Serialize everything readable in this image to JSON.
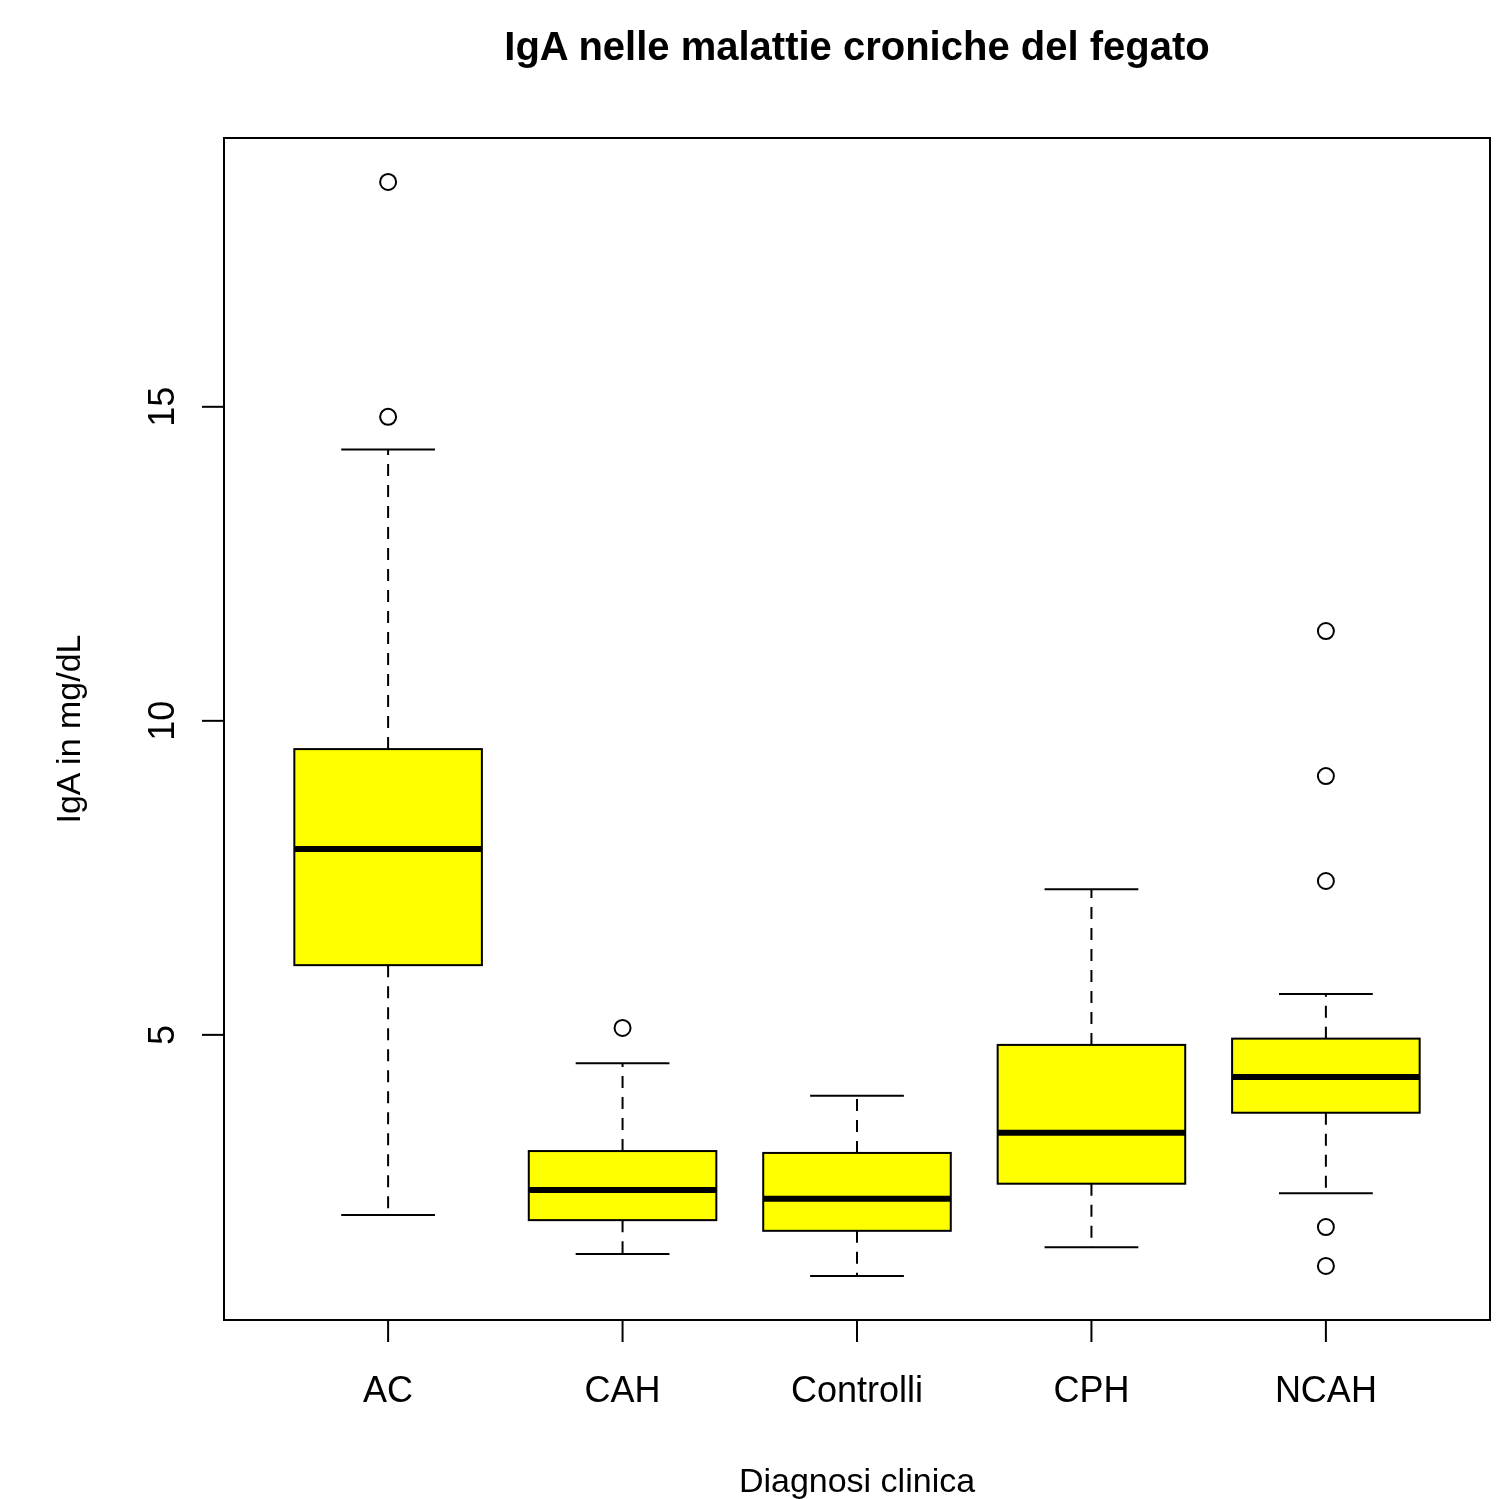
{
  "chart_data": {
    "type": "box",
    "title": "IgA nelle malattie croniche del fegato",
    "xlabel": "Diagnosi clinica",
    "ylabel": "IgA in mg/dL",
    "categories": [
      "AC",
      "CAH",
      "Controlli",
      "CPH",
      "NCAH"
    ],
    "color": "#ffff00",
    "boxes": [
      {
        "low": 2.13,
        "q1": 6.11,
        "median": 7.96,
        "q3": 9.55,
        "high": 14.32,
        "outliers": [
          14.84,
          18.58
        ]
      },
      {
        "low": 1.51,
        "q1": 2.05,
        "median": 2.53,
        "q3": 3.15,
        "high": 4.55,
        "outliers": [
          5.11
        ]
      },
      {
        "low": 1.16,
        "q1": 1.88,
        "median": 2.39,
        "q3": 3.12,
        "high": 4.03
      },
      {
        "low": 1.62,
        "q1": 2.63,
        "median": 3.44,
        "q3": 4.84,
        "high": 7.32
      },
      {
        "low": 2.48,
        "q1": 3.76,
        "median": 4.33,
        "q3": 4.94,
        "high": 5.65,
        "outliers": [
          1.32,
          1.94,
          7.45,
          9.12,
          11.43
        ]
      }
    ],
    "ylim": [
      0.46,
      19.28
    ],
    "yticks": [
      5,
      10,
      15
    ]
  }
}
